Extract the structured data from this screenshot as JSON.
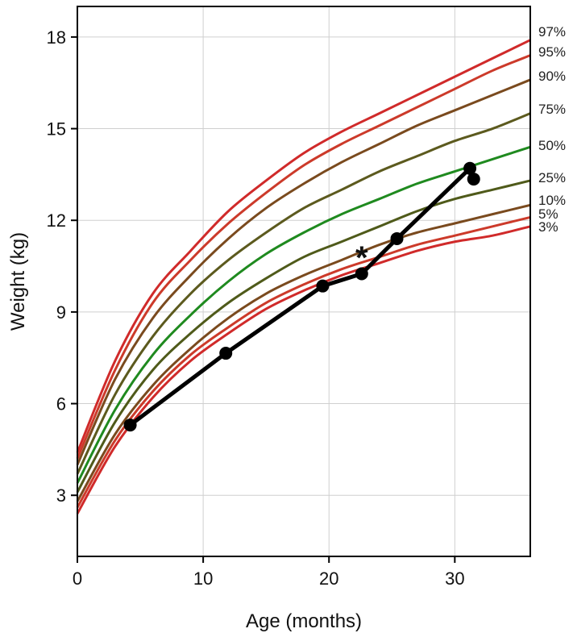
{
  "chart_data": {
    "type": "line",
    "xlabel": "Age (months)",
    "ylabel": "Weight (kg)",
    "xlim": [
      0,
      36
    ],
    "ylim": [
      1,
      19
    ],
    "x_ticks": [
      "0",
      "10",
      "20",
      "30"
    ],
    "y_ticks": [
      "3",
      "6",
      "9",
      "12",
      "15",
      "18"
    ],
    "grid": true,
    "percentile_curves": [
      {
        "label": "97%",
        "color": "#d02a2a",
        "x": [
          0,
          3,
          6,
          9,
          12,
          15,
          18,
          21,
          24,
          27,
          30,
          33,
          36
        ],
        "y": [
          4.4,
          7.4,
          9.6,
          11.0,
          12.3,
          13.3,
          14.2,
          14.9,
          15.5,
          16.1,
          16.7,
          17.3,
          17.9
        ]
      },
      {
        "label": "95%",
        "color": "#cc3a2a",
        "x": [
          0,
          3,
          6,
          9,
          12,
          15,
          18,
          21,
          24,
          27,
          30,
          33,
          36
        ],
        "y": [
          4.2,
          7.1,
          9.3,
          10.7,
          11.9,
          12.9,
          13.8,
          14.5,
          15.1,
          15.7,
          16.3,
          16.9,
          17.4
        ]
      },
      {
        "label": "90%",
        "color": "#7a4a1e",
        "x": [
          0,
          3,
          6,
          9,
          12,
          15,
          18,
          21,
          24,
          27,
          30,
          33,
          36
        ],
        "y": [
          4.0,
          6.8,
          8.8,
          10.2,
          11.4,
          12.4,
          13.2,
          13.9,
          14.5,
          15.1,
          15.6,
          16.1,
          16.6
        ]
      },
      {
        "label": "75%",
        "color": "#5c5a1e",
        "x": [
          0,
          3,
          6,
          9,
          12,
          15,
          18,
          21,
          24,
          27,
          30,
          33,
          36
        ],
        "y": [
          3.7,
          6.3,
          8.2,
          9.6,
          10.7,
          11.6,
          12.4,
          13.0,
          13.6,
          14.1,
          14.6,
          15.0,
          15.5
        ]
      },
      {
        "label": "50%",
        "color": "#1f8a1f",
        "x": [
          0,
          3,
          6,
          9,
          12,
          15,
          18,
          21,
          24,
          27,
          30,
          33,
          36
        ],
        "y": [
          3.4,
          5.8,
          7.6,
          8.9,
          10.0,
          10.9,
          11.6,
          12.2,
          12.7,
          13.2,
          13.6,
          14.0,
          14.4
        ]
      },
      {
        "label": "25%",
        "color": "#4f5a1a",
        "x": [
          0,
          3,
          6,
          9,
          12,
          15,
          18,
          21,
          24,
          27,
          30,
          33,
          36
        ],
        "y": [
          3.1,
          5.4,
          7.1,
          8.3,
          9.3,
          10.1,
          10.8,
          11.3,
          11.8,
          12.3,
          12.7,
          13.0,
          13.3
        ]
      },
      {
        "label": "10%",
        "color": "#7a4a1e",
        "x": [
          0,
          3,
          6,
          9,
          12,
          15,
          18,
          21,
          24,
          27,
          30,
          33,
          36
        ],
        "y": [
          2.8,
          5.0,
          6.6,
          7.8,
          8.8,
          9.6,
          10.2,
          10.7,
          11.2,
          11.6,
          11.9,
          12.2,
          12.5
        ]
      },
      {
        "label": "5%",
        "color": "#cc3a2a",
        "x": [
          0,
          3,
          6,
          9,
          12,
          15,
          18,
          21,
          24,
          27,
          30,
          33,
          36
        ],
        "y": [
          2.6,
          4.8,
          6.4,
          7.6,
          8.5,
          9.3,
          9.9,
          10.4,
          10.8,
          11.2,
          11.5,
          11.8,
          12.1
        ]
      },
      {
        "label": "3%",
        "color": "#d02a2a",
        "x": [
          0,
          3,
          6,
          9,
          12,
          15,
          18,
          21,
          24,
          27,
          30,
          33,
          36
        ],
        "y": [
          2.4,
          4.6,
          6.2,
          7.4,
          8.3,
          9.1,
          9.7,
          10.2,
          10.6,
          11.0,
          11.3,
          11.5,
          11.8
        ]
      }
    ],
    "patient_series": {
      "color": "#000000",
      "points": [
        {
          "x": 4.2,
          "y": 5.3
        },
        {
          "x": 11.8,
          "y": 7.65
        },
        {
          "x": 19.5,
          "y": 9.85
        },
        {
          "x": 22.6,
          "y": 10.25
        },
        {
          "x": 25.4,
          "y": 11.4
        },
        {
          "x": 31.2,
          "y": 13.7
        },
        {
          "x": 31.5,
          "y": 13.35
        }
      ]
    },
    "annotation": {
      "text": "*",
      "x": 22.6,
      "y": 10.95
    }
  }
}
